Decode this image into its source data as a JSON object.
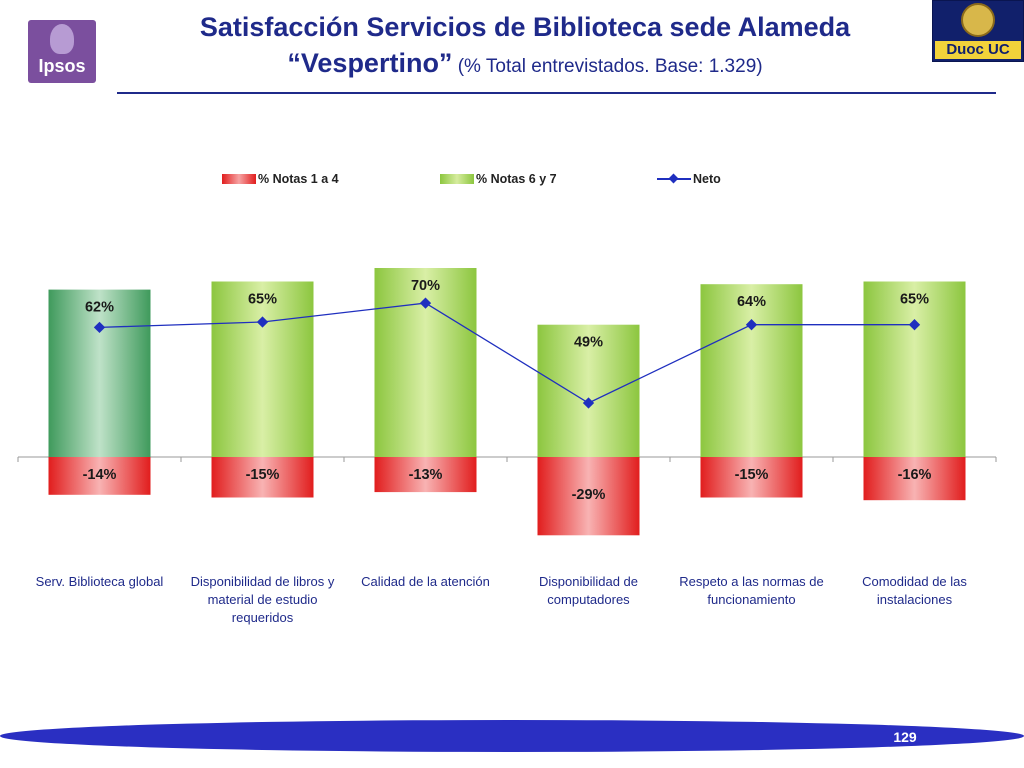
{
  "header": {
    "title_line1": "Satisfacción Servicios de Biblioteca sede Alameda",
    "title_line2_main": "“Vespertino”",
    "title_line2_sub": " (% Total entrevistados. Base: 1.329)",
    "left_logo_text": "Ipsos",
    "right_logo_text": "Duoc UC"
  },
  "colors": {
    "title": "#1f2a8a",
    "negative_bar": "#e11d1d",
    "positive_bar": "#8cc63f",
    "highlight_bar": "#3f9a5c",
    "net_line": "#1f2fbf",
    "footer": "#2a2fc2"
  },
  "legend": {
    "items": [
      "% Notas 1 a 4",
      "% Notas 6 y 7",
      "Neto"
    ]
  },
  "chart_data": {
    "type": "bar",
    "categories": [
      "Serv. Biblioteca global",
      "Disponibilidad de libros y material de estudio requeridos",
      "Calidad de la atención",
      "Disponibilidad de computadores",
      "Respeto a las normas de funcionamiento",
      "Comodidad de las instalaciones"
    ],
    "series": [
      {
        "name": "% Notas 1 a 4",
        "kind": "bar",
        "values": [
          -14,
          -15,
          -13,
          -29,
          -15,
          -16
        ],
        "labels": [
          "-14%",
          "-15%",
          "-13%",
          "-29%",
          "-15%",
          "-16%"
        ]
      },
      {
        "name": "% Notas 6 y 7",
        "kind": "bar",
        "values": [
          62,
          65,
          70,
          49,
          64,
          65
        ],
        "labels": [
          "62%",
          "65%",
          "70%",
          "49%",
          "64%",
          "65%"
        ]
      },
      {
        "name": "Neto",
        "kind": "line",
        "values": [
          48,
          50,
          57,
          20,
          49,
          49
        ]
      }
    ],
    "ylim": [
      -35,
      80
    ],
    "stacked_diverging": true,
    "grid": false,
    "legend_position": "top"
  },
  "footer": {
    "page_number": "129"
  }
}
